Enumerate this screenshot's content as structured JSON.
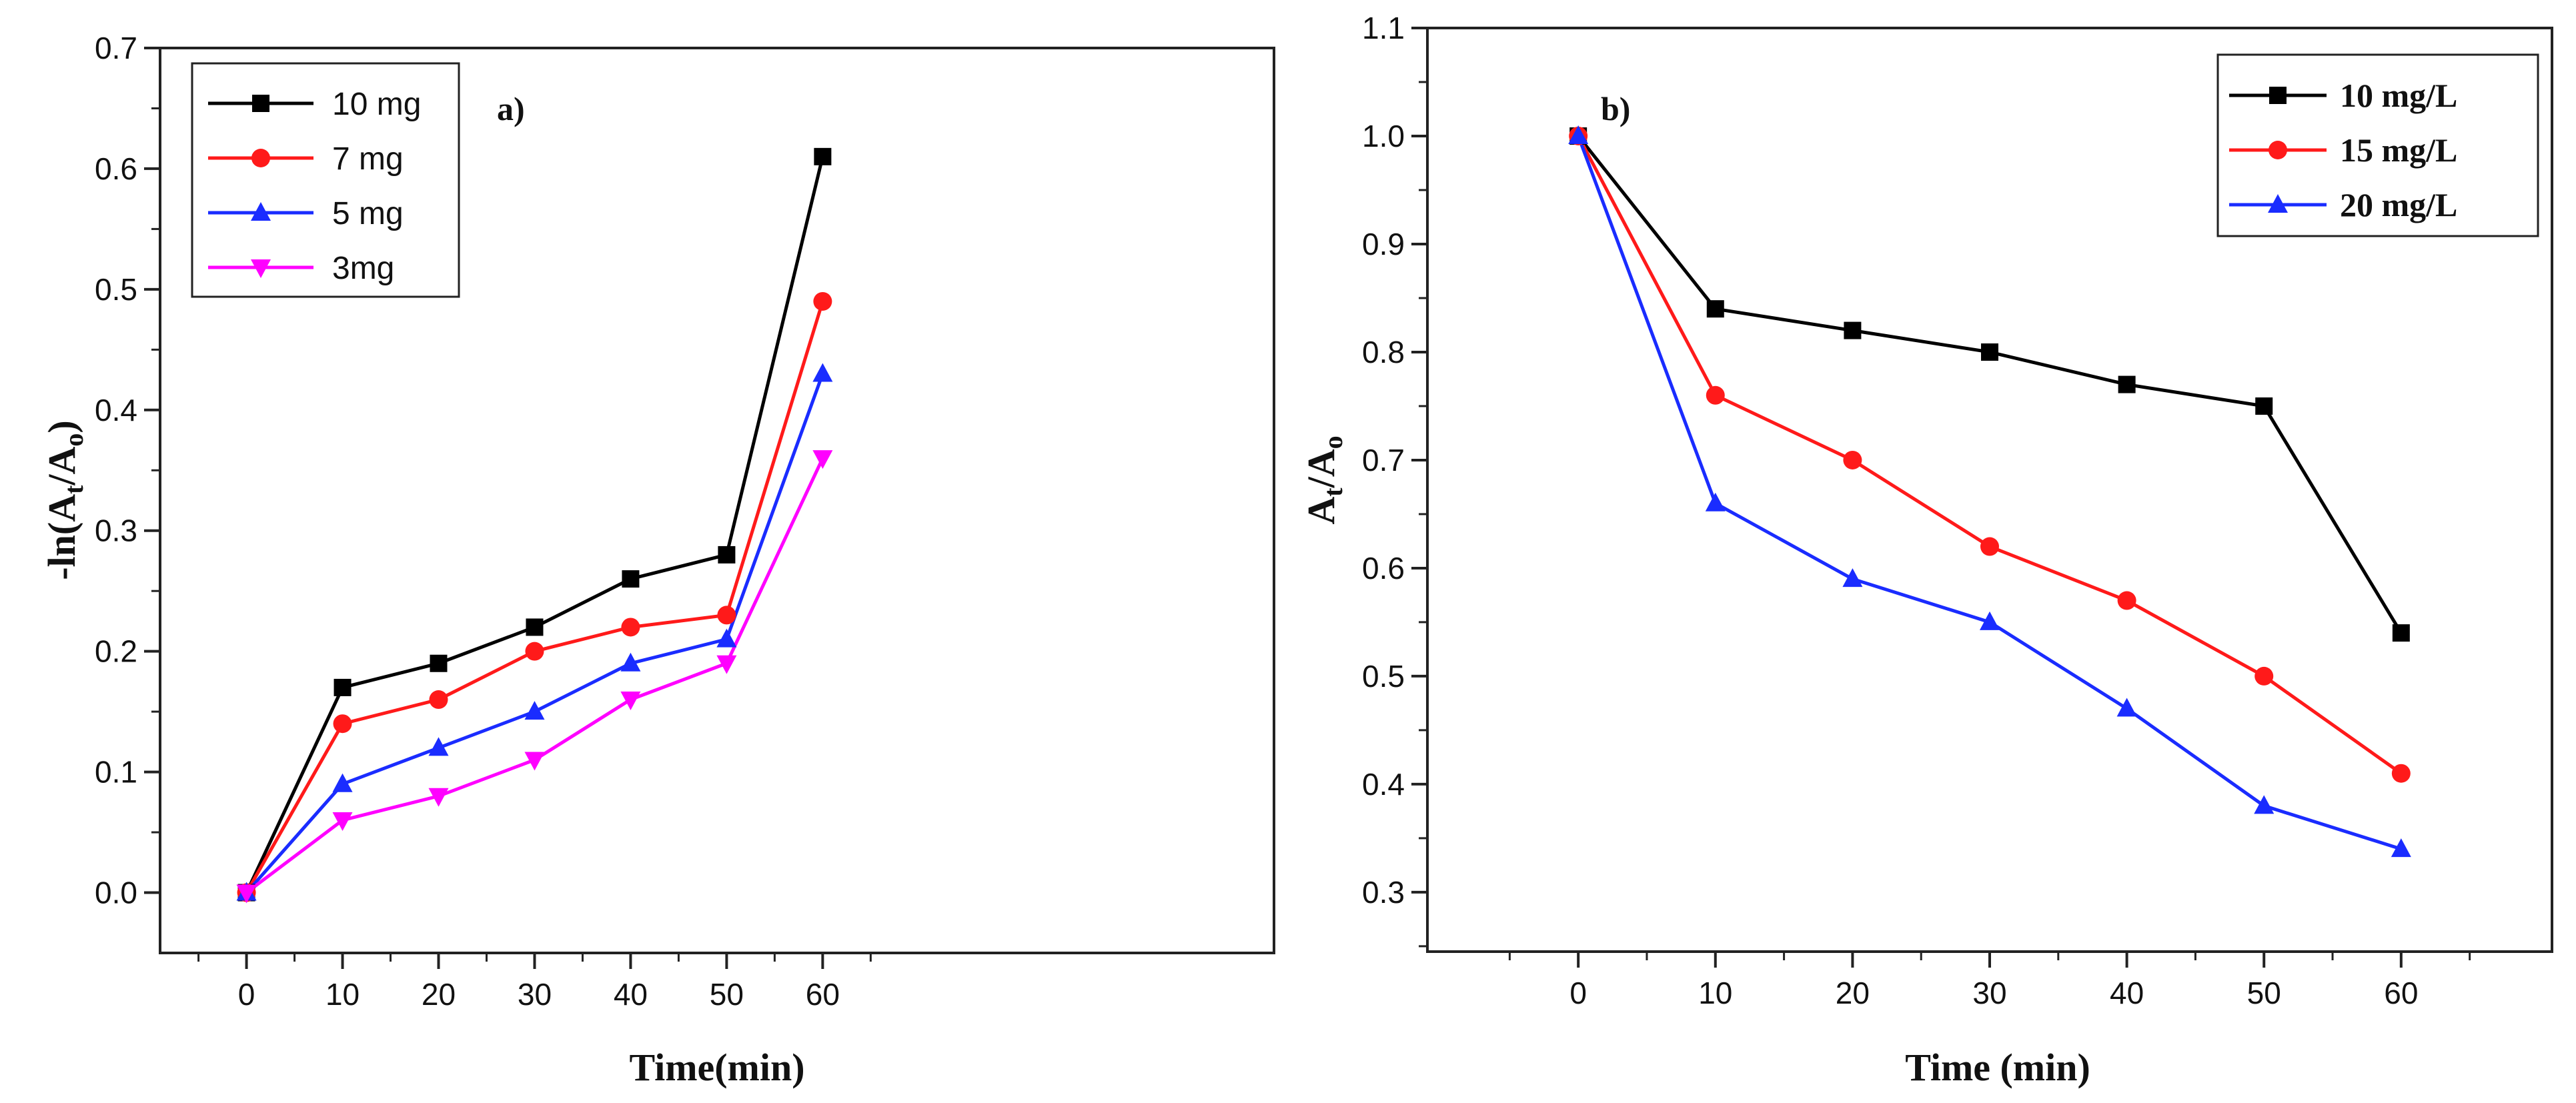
{
  "chart_data": [
    {
      "type": "line",
      "panel_label": "a)",
      "x": [
        0,
        10,
        20,
        30,
        40,
        50,
        60
      ],
      "xticks": [
        "0",
        "10",
        "20",
        "30",
        "40",
        "50",
        "60"
      ],
      "xlim": [
        -9,
        107
      ],
      "yticks": [
        "0.0",
        "0.1",
        "0.2",
        "0.3",
        "0.4",
        "0.5",
        "0.6",
        "0.7"
      ],
      "ylim": [
        -0.05,
        0.7
      ],
      "xlabel": "Time(min)",
      "ylabel": {
        "prefix": "-ln(A",
        "sub1": "t",
        "mid": "/A",
        "sub2": "o",
        "suffix": ")"
      },
      "legend_position": "top-left",
      "series": [
        {
          "name": "10 mg",
          "color": "#000000",
          "marker": "square",
          "values": [
            0,
            0.17,
            0.19,
            0.22,
            0.26,
            0.28,
            0.61
          ]
        },
        {
          "name": "7 mg",
          "color": "#ff1a1a",
          "marker": "circle",
          "values": [
            0,
            0.14,
            0.16,
            0.2,
            0.22,
            0.23,
            0.49
          ]
        },
        {
          "name": "5 mg",
          "color": "#1a2cff",
          "marker": "triangle-up",
          "values": [
            0,
            0.09,
            0.12,
            0.15,
            0.19,
            0.21,
            0.43
          ]
        },
        {
          "name": "3mg",
          "color": "#ff00ff",
          "marker": "triangle-down",
          "values": [
            0,
            0.06,
            0.08,
            0.11,
            0.16,
            0.19,
            0.36
          ]
        }
      ]
    },
    {
      "type": "line",
      "panel_label": "b)",
      "x": [
        0,
        10,
        20,
        30,
        40,
        50,
        60
      ],
      "xticks": [
        "0",
        "10",
        "20",
        "30",
        "40",
        "50",
        "60"
      ],
      "xlim": [
        -11,
        71
      ],
      "yticks": [
        "0.3",
        "0.4",
        "0.5",
        "0.6",
        "0.7",
        "0.8",
        "0.9",
        "1.0",
        "1.1"
      ],
      "ylim": [
        0.245,
        1.1
      ],
      "xlabel": "Time (min)",
      "ylabel": {
        "prefix": "A",
        "sub1": "t",
        "mid": "/A",
        "sub2": "o",
        "suffix": ""
      },
      "legend_position": "top-right",
      "series": [
        {
          "name": "10 mg/L",
          "color": "#000000",
          "marker": "square",
          "values": [
            1.0,
            0.84,
            0.82,
            0.8,
            0.77,
            0.75,
            0.54
          ]
        },
        {
          "name": "15 mg/L",
          "color": "#ff1a1a",
          "marker": "circle",
          "values": [
            1.0,
            0.76,
            0.7,
            0.62,
            0.57,
            0.5,
            0.41
          ]
        },
        {
          "name": "20 mg/L",
          "color": "#1a2cff",
          "marker": "triangle-up",
          "values": [
            1.0,
            0.66,
            0.59,
            0.55,
            0.47,
            0.38,
            0.34
          ]
        }
      ]
    }
  ]
}
